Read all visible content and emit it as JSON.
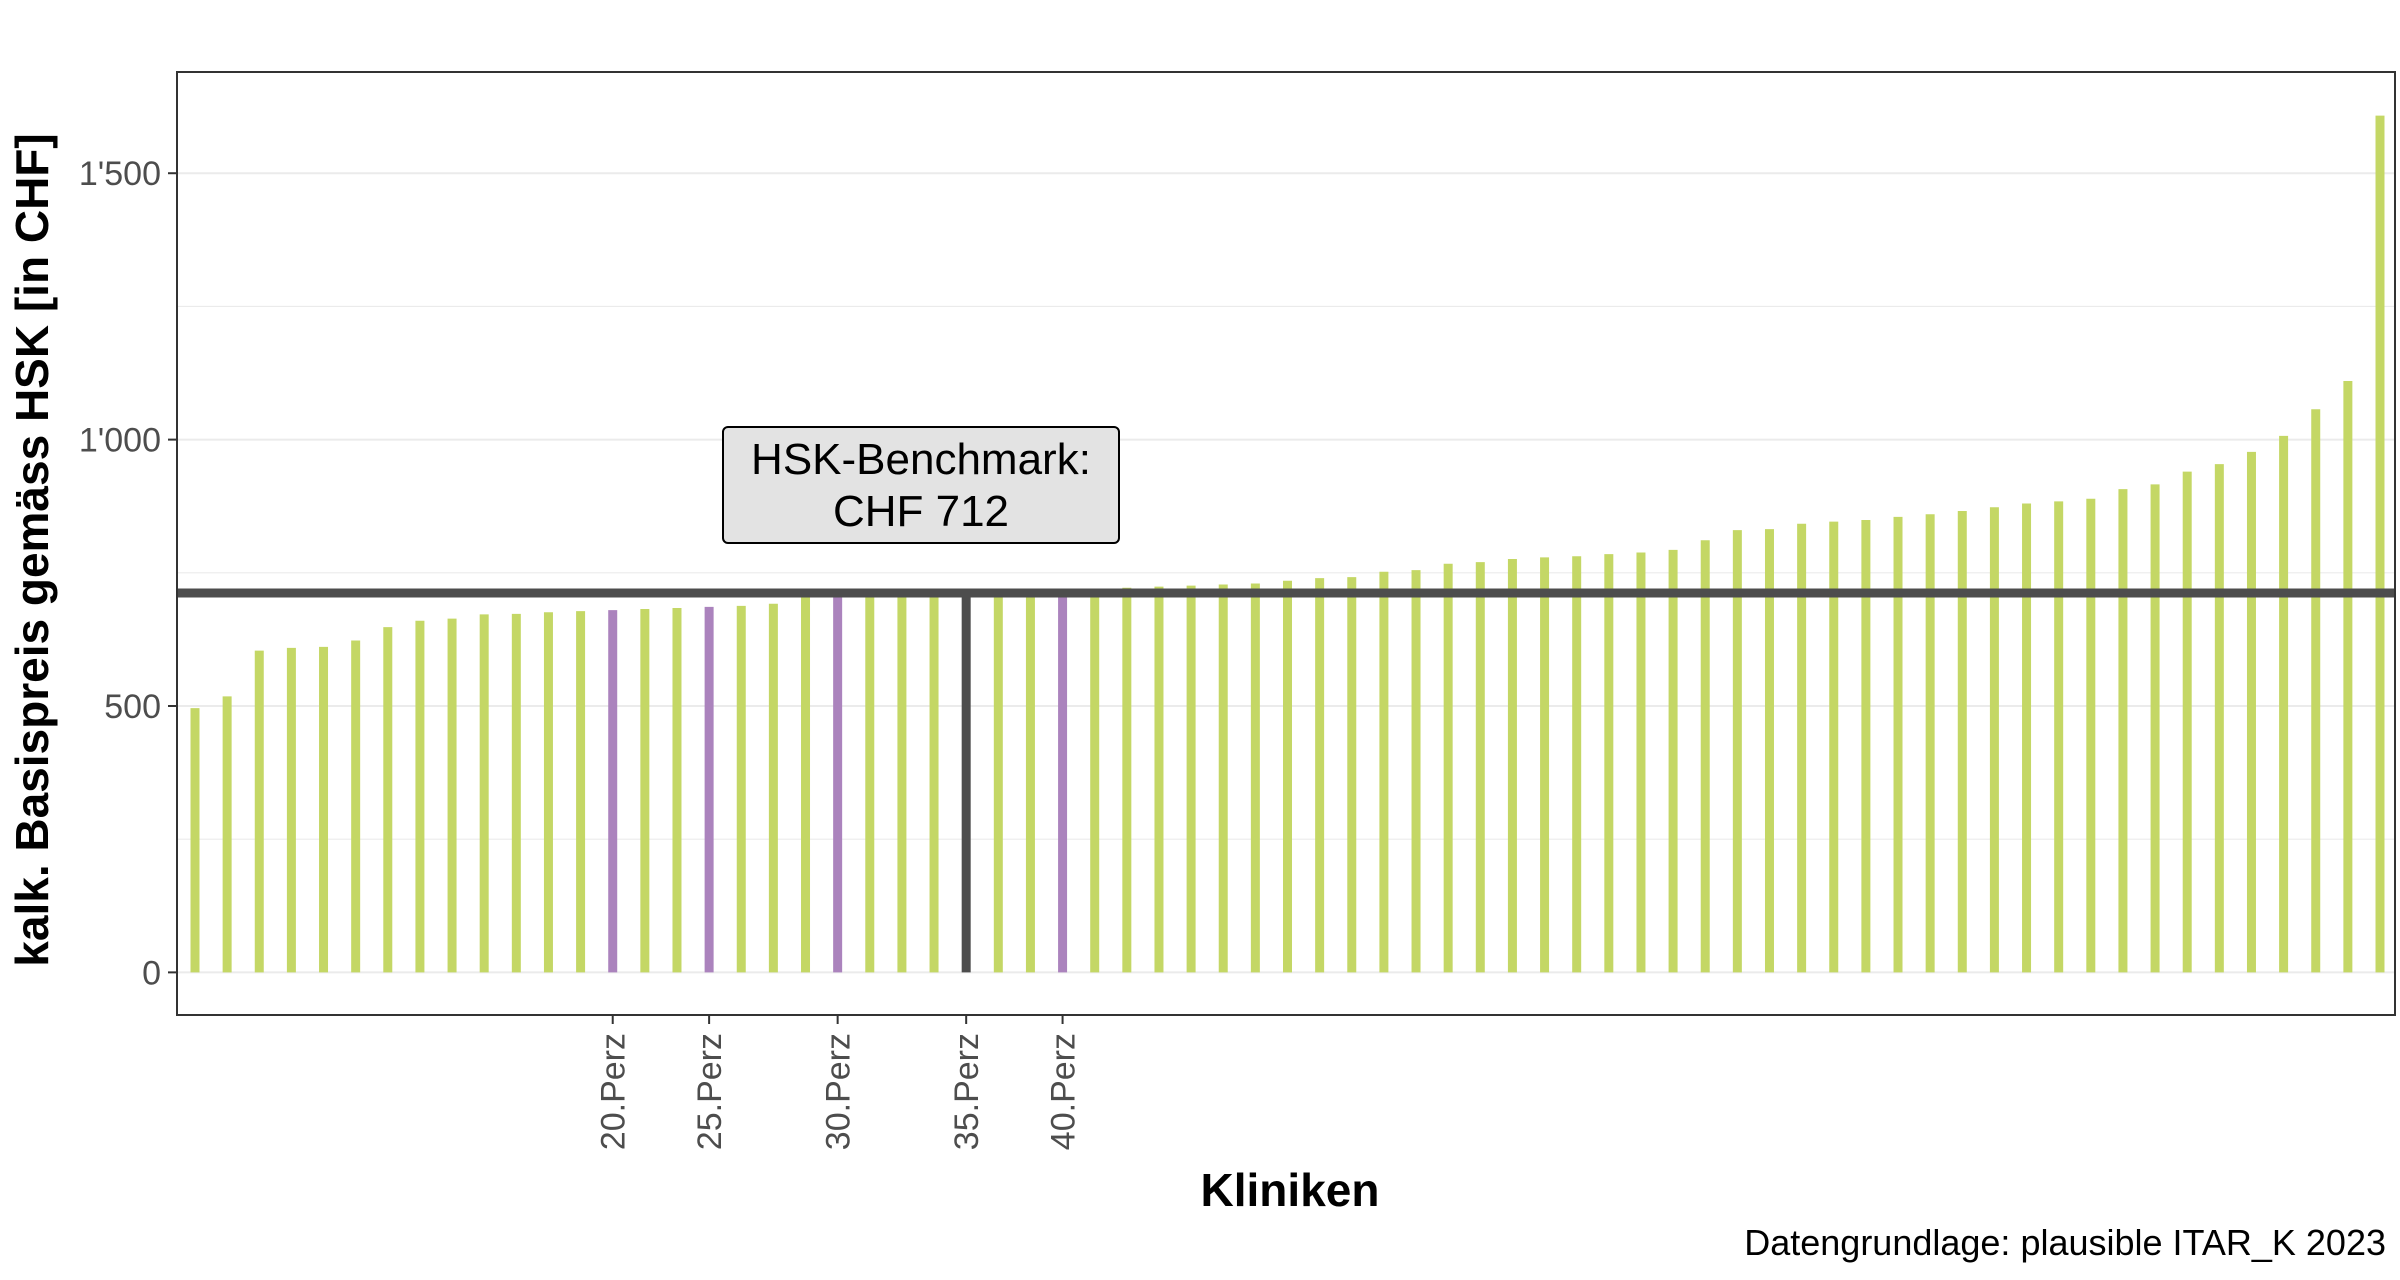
{
  "chart_data": {
    "type": "bar",
    "ylabel": "kalk. Basispreis gemäss HSK [in CHF]",
    "xlabel": "Kliniken",
    "caption": "Datengrundlage: plausible ITAR_K 2023",
    "ylim": [
      -80,
      1690
    ],
    "yticks": [
      0,
      500,
      1000,
      1500
    ],
    "ytick_labels": [
      "0",
      "500",
      "1'000",
      "1'500"
    ],
    "grid": true,
    "benchmark": {
      "value": 712,
      "label_line1": "HSK-Benchmark:",
      "label_line2": "CHF 712"
    },
    "values": [
      496,
      518,
      604,
      609,
      611,
      623,
      648,
      660,
      664,
      672,
      673,
      676,
      678,
      680,
      682,
      684,
      686,
      688,
      692,
      705,
      706,
      707,
      708,
      710,
      711,
      712,
      714,
      716,
      720,
      722,
      724,
      726,
      728,
      730,
      735,
      740,
      742,
      752,
      755,
      767,
      770,
      776,
      779,
      781,
      785,
      788,
      793,
      811,
      830,
      832,
      842,
      846,
      849,
      855,
      860,
      866,
      873,
      880,
      884,
      889,
      907,
      916,
      940,
      954,
      977,
      1007,
      1057,
      1110,
      1608
    ],
    "highlight_index": [
      13,
      16,
      20,
      24,
      27
    ],
    "percentile_labels": [
      "20.Perz",
      "25.Perz",
      "30.Perz",
      "35.Perz",
      "40.Perz"
    ],
    "median_index": 24
  },
  "colors": {
    "bar": "#c4d765",
    "highlight": "#ab83bd",
    "benchmark_bar": "#4d4d4d",
    "benchmark_line": "#4d4d4d",
    "grid": "#ebebeb",
    "tick_text": "#4d4d4d"
  }
}
